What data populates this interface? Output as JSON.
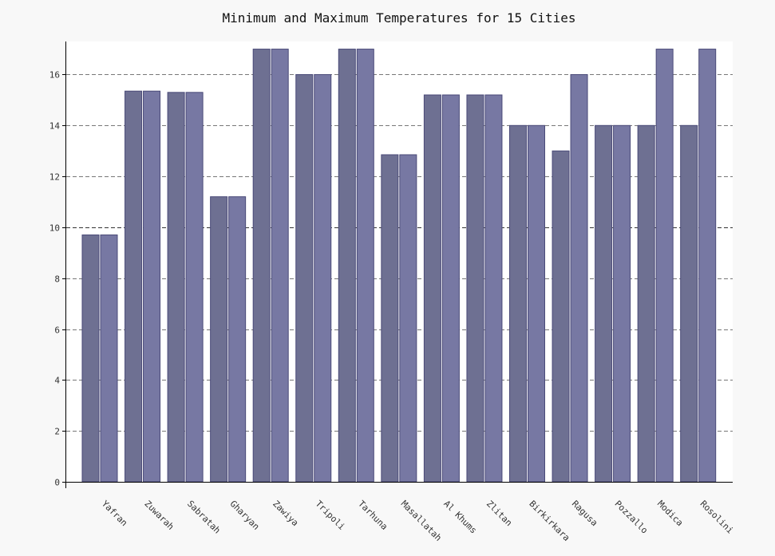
{
  "chart_data": {
    "type": "bar",
    "title": "Minimum and Maximum Temperatures for 15 Cities",
    "xlabel": "",
    "ylabel": "",
    "ylim": [
      0,
      17.3
    ],
    "yticks": [
      0,
      2,
      4,
      6,
      8,
      10,
      12,
      14,
      16
    ],
    "grid": "horizontal-dashed",
    "legend": "none",
    "categories": [
      "Yafran",
      "Zuwarah",
      "Sabratah",
      "Gharyan",
      "Zawiya",
      "Tripoli",
      "Tarhuna",
      "Masallatah",
      "Al Khums",
      "Zlitan",
      "Birkirkara",
      "Ragusa",
      "Pozzallo",
      "Modica",
      "Rosolini"
    ],
    "series": [
      {
        "color": "#6e7092",
        "values": [
          9.7,
          15.35,
          15.3,
          11.2,
          17,
          16,
          17,
          12.85,
          15.2,
          15.2,
          14,
          13,
          14,
          14,
          14
        ]
      },
      {
        "color": "#7778a3",
        "values": [
          9.7,
          15.35,
          15.3,
          11.2,
          17,
          16,
          17,
          12.85,
          15.2,
          15.2,
          14,
          16,
          14,
          17,
          17
        ]
      }
    ]
  }
}
